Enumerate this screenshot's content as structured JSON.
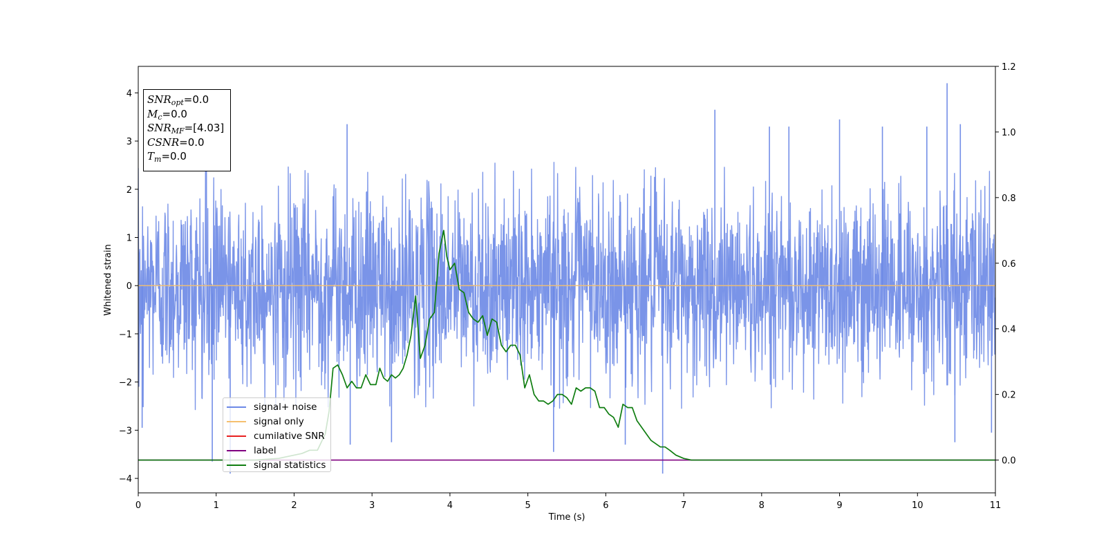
{
  "chart_data": {
    "type": "line",
    "title": "",
    "xlabel": "Time (s)",
    "ylabel": "Whitened strain",
    "xlim": [
      0,
      11
    ],
    "ylim": [
      -4.3,
      4.55
    ],
    "y2lim": [
      -0.1,
      1.2
    ],
    "x_ticks": [
      "0",
      "1",
      "2",
      "3",
      "4",
      "5",
      "6",
      "7",
      "8",
      "9",
      "10",
      "11"
    ],
    "y_ticks": [
      {
        "value": 4,
        "label": "4"
      },
      {
        "value": 3,
        "label": "3"
      },
      {
        "value": 2,
        "label": "2"
      },
      {
        "value": 1,
        "label": "1"
      },
      {
        "value": 0,
        "label": "0"
      },
      {
        "value": -1,
        "label": "−1"
      },
      {
        "value": -2,
        "label": "−2"
      },
      {
        "value": -3,
        "label": "−3"
      },
      {
        "value": -4,
        "label": "−4"
      }
    ],
    "y2_ticks": [
      {
        "value": 1.2,
        "label": "1.2"
      },
      {
        "value": 1.0,
        "label": "1.0"
      },
      {
        "value": 0.8,
        "label": "0.8"
      },
      {
        "value": 0.6,
        "label": "0.6"
      },
      {
        "value": 0.4,
        "label": "0.4"
      },
      {
        "value": 0.2,
        "label": "0.2"
      },
      {
        "value": 0.0,
        "label": "0.0"
      }
    ],
    "legend_position": "lower-left",
    "grid": false,
    "series": [
      {
        "name": "signal+ noise",
        "axis": "left",
        "color": "#6b88e6",
        "description": "dense noise, mostly within about ±2.5, outlier peaks",
        "peaks": [
          {
            "x": 0.05,
            "y": -2.95
          },
          {
            "x": 0.95,
            "y": -3.65
          },
          {
            "x": 1.18,
            "y": -3.9
          },
          {
            "x": 2.68,
            "y": 3.35
          },
          {
            "x": 2.72,
            "y": -3.3
          },
          {
            "x": 3.25,
            "y": -3.25
          },
          {
            "x": 5.33,
            "y": -3.45
          },
          {
            "x": 6.25,
            "y": -3.3
          },
          {
            "x": 6.73,
            "y": -3.9
          },
          {
            "x": 7.4,
            "y": 3.65
          },
          {
            "x": 8.1,
            "y": 3.3
          },
          {
            "x": 8.35,
            "y": 3.3
          },
          {
            "x": 9.0,
            "y": 3.45
          },
          {
            "x": 9.55,
            "y": 3.3
          },
          {
            "x": 10.12,
            "y": 3.3
          },
          {
            "x": 10.38,
            "y": 4.2
          },
          {
            "x": 10.48,
            "y": -3.25
          },
          {
            "x": 10.55,
            "y": 3.35
          },
          {
            "x": 10.95,
            "y": -3.05
          }
        ]
      },
      {
        "name": "signal only",
        "axis": "left",
        "color": "#f5bf6e",
        "x": [
          0,
          11
        ],
        "values": [
          0,
          0
        ]
      },
      {
        "name": "cumilative SNR",
        "axis": "left",
        "color": "#e81f1f",
        "x": [],
        "values": []
      },
      {
        "name": "label",
        "axis": "right",
        "color": "#800080",
        "x": [
          0,
          11
        ],
        "values": [
          0,
          0
        ]
      },
      {
        "name": "signal statistics",
        "axis": "right",
        "color": "#0f7d10",
        "x": [
          0,
          0.3,
          0.6,
          0.9,
          1.2,
          1.5,
          1.8,
          1.9,
          2.0,
          2.1,
          2.2,
          2.3,
          2.4,
          2.45,
          2.5,
          2.56,
          2.62,
          2.68,
          2.74,
          2.8,
          2.86,
          2.92,
          2.98,
          3.05,
          3.1,
          3.15,
          3.2,
          3.25,
          3.3,
          3.35,
          3.4,
          3.45,
          3.5,
          3.56,
          3.62,
          3.68,
          3.74,
          3.8,
          3.86,
          3.92,
          3.96,
          4.0,
          4.06,
          4.12,
          4.18,
          4.24,
          4.3,
          4.36,
          4.42,
          4.48,
          4.54,
          4.6,
          4.66,
          4.72,
          4.78,
          4.84,
          4.9,
          4.96,
          5.02,
          5.08,
          5.14,
          5.2,
          5.26,
          5.32,
          5.38,
          5.44,
          5.5,
          5.56,
          5.62,
          5.68,
          5.74,
          5.8,
          5.86,
          5.92,
          5.98,
          6.04,
          6.1,
          6.16,
          6.22,
          6.28,
          6.34,
          6.4,
          6.46,
          6.52,
          6.58,
          6.64,
          6.7,
          6.76,
          6.82,
          6.9,
          7.0,
          7.1,
          7.2,
          7.3,
          7.4,
          7.6,
          7.8,
          8.0,
          8.2,
          8.4,
          8.6,
          9.0,
          9.5,
          10.0,
          10.3,
          10.6,
          11.0
        ],
        "values": [
          0.0,
          0.0,
          0.0,
          0.0,
          0.0,
          0.0,
          0.005,
          0.01,
          0.015,
          0.02,
          0.03,
          0.03,
          0.08,
          0.15,
          0.28,
          0.29,
          0.26,
          0.22,
          0.24,
          0.22,
          0.22,
          0.26,
          0.23,
          0.23,
          0.28,
          0.25,
          0.24,
          0.26,
          0.25,
          0.26,
          0.28,
          0.32,
          0.38,
          0.5,
          0.31,
          0.35,
          0.43,
          0.45,
          0.63,
          0.7,
          0.62,
          0.58,
          0.6,
          0.52,
          0.51,
          0.45,
          0.43,
          0.42,
          0.44,
          0.38,
          0.43,
          0.42,
          0.35,
          0.33,
          0.35,
          0.35,
          0.32,
          0.22,
          0.26,
          0.2,
          0.18,
          0.18,
          0.17,
          0.18,
          0.2,
          0.2,
          0.19,
          0.17,
          0.22,
          0.21,
          0.22,
          0.22,
          0.21,
          0.16,
          0.16,
          0.14,
          0.13,
          0.1,
          0.17,
          0.16,
          0.16,
          0.12,
          0.1,
          0.08,
          0.06,
          0.05,
          0.04,
          0.04,
          0.03,
          0.015,
          0.005,
          0.0,
          0.0,
          0.0,
          0.0,
          0.0,
          0.0,
          0.0,
          0.0,
          0.0,
          0.0,
          0.0,
          0.0,
          0.0,
          0.0,
          0.0,
          0.0
        ]
      }
    ]
  },
  "stats": {
    "snr_opt_base": "SNR",
    "snr_opt_sub": "opt",
    "snr_opt_value": "=0.0",
    "mc_base": "M",
    "mc_sub": "c",
    "mc_value": "=0.0",
    "snr_mf_base": "SNR",
    "snr_mf_sub": "MF",
    "snr_mf_value": "=[4.03]",
    "csnr_base": "CSNR",
    "csnr_value": "=0.0",
    "tm_base": "T",
    "tm_sub": "m",
    "tm_value": "=0.0"
  },
  "legend": {
    "items": [
      {
        "label": "signal+ noise",
        "color": "#6b88e6"
      },
      {
        "label": "signal only",
        "color": "#f5bf6e"
      },
      {
        "label": "cumilative SNR",
        "color": "#e81f1f"
      },
      {
        "label": "label",
        "color": "#800080"
      },
      {
        "label": "signal statistics",
        "color": "#0f7d10"
      }
    ]
  }
}
